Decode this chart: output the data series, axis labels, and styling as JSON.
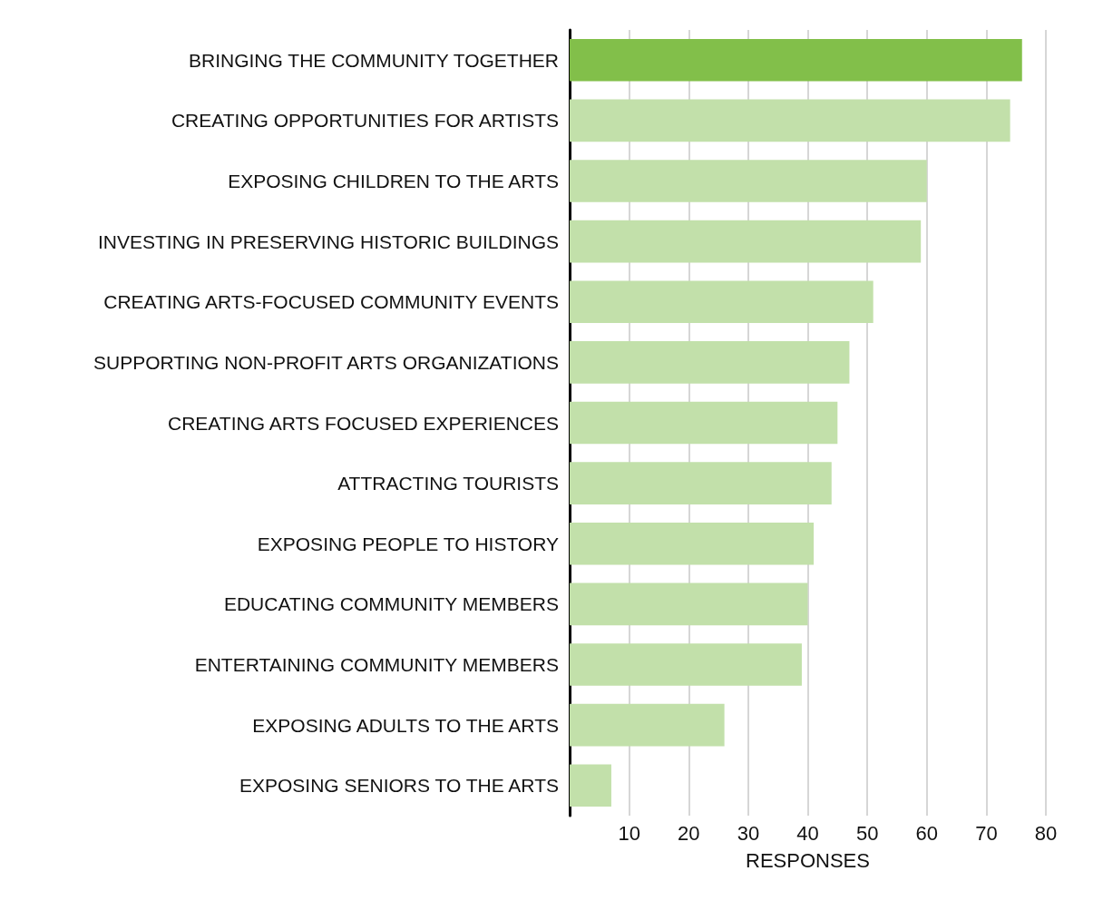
{
  "chart_data": {
    "type": "bar",
    "orientation": "horizontal",
    "xlabel": "RESPONSES",
    "categories": [
      "BRINGING THE COMMUNITY TOGETHER",
      "CREATING OPPORTUNITIES FOR ARTISTS",
      "EXPOSING CHILDREN TO THE ARTS",
      "INVESTING IN PRESERVING HISTORIC BUILDINGS",
      "CREATING ARTS-FOCUSED COMMUNITY EVENTS",
      "SUPPORTING NON-PROFIT ARTS ORGANIZATIONS",
      "CREATING ARTS FOCUSED EXPERIENCES",
      "ATTRACTING TOURISTS",
      "EXPOSING PEOPLE TO HISTORY",
      "EDUCATING COMMUNITY MEMBERS",
      "ENTERTAINING COMMUNITY MEMBERS",
      "EXPOSING ADULTS TO THE ARTS",
      "EXPOSING SENIORS TO THE ARTS"
    ],
    "values": [
      76,
      74,
      60,
      59,
      51,
      47,
      45,
      44,
      41,
      40,
      39,
      26,
      7
    ],
    "colors": [
      "#82bf4a",
      "#c2e0aa",
      "#c2e0aa",
      "#c2e0aa",
      "#c2e0aa",
      "#c2e0aa",
      "#c2e0aa",
      "#c2e0aa",
      "#c2e0aa",
      "#c2e0aa",
      "#c2e0aa",
      "#c2e0aa",
      "#c2e0aa"
    ],
    "xlim": [
      0,
      80
    ],
    "xticks": [
      10,
      20,
      30,
      40,
      50,
      60,
      70,
      80
    ],
    "grid": "x"
  }
}
